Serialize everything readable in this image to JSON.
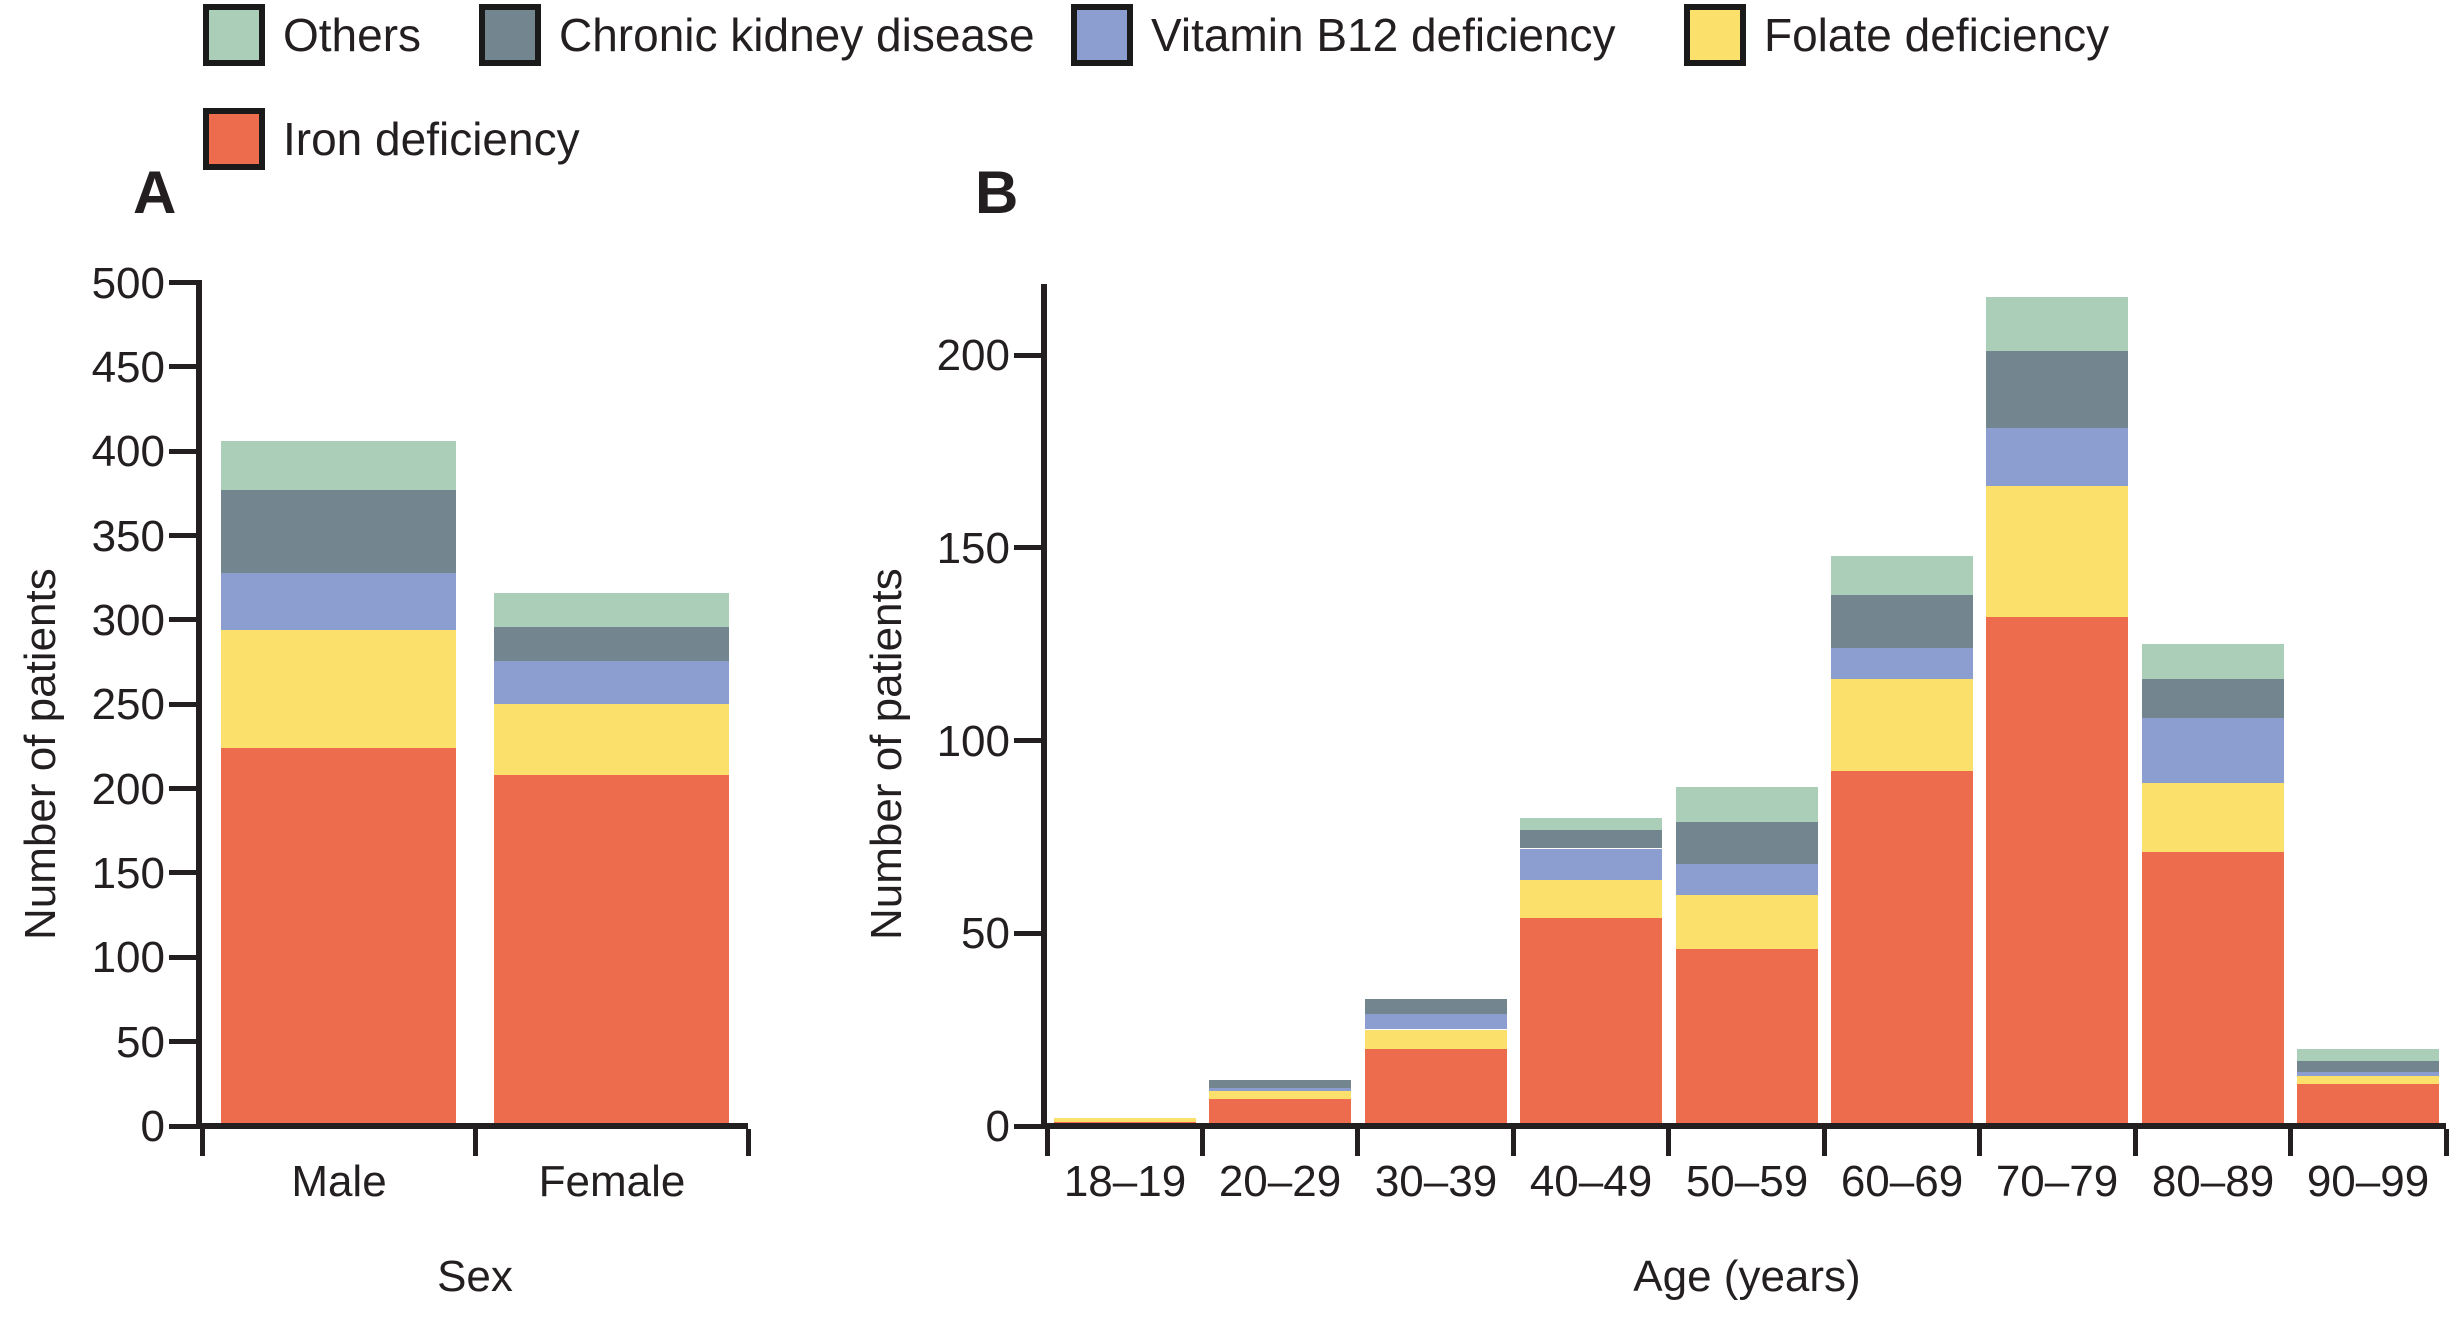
{
  "figure": {
    "panels": [
      {
        "label": "A"
      },
      {
        "label": "B"
      }
    ],
    "legend": {
      "items": [
        {
          "key": "others",
          "label": "Others",
          "color": "#ABCEB9"
        },
        {
          "key": "ckd",
          "label": "Chronic kidney disease",
          "color": "#73858F"
        },
        {
          "key": "b12",
          "label": "Vitamin B12 deficiency",
          "color": "#8C9ECF"
        },
        {
          "key": "folate",
          "label": "Folate deficiency",
          "color": "#FBE16B"
        },
        {
          "key": "iron",
          "label": "Iron deficiency",
          "color": "#ED6C4D"
        }
      ]
    }
  },
  "chart_data": [
    {
      "type": "bar",
      "stacked": true,
      "panel": "A",
      "categories": [
        "Male",
        "Female"
      ],
      "xlabel": "Sex",
      "ylabel": "Number of patients",
      "ylim": [
        0,
        500
      ],
      "yticks": [
        0,
        50,
        100,
        150,
        200,
        250,
        300,
        350,
        400,
        450,
        500
      ],
      "grid": false,
      "legend_position": "top",
      "series": [
        {
          "key": "iron",
          "name": "Iron deficiency",
          "values": [
            224,
            208
          ]
        },
        {
          "key": "folate",
          "name": "Folate deficiency",
          "values": [
            70,
            42
          ]
        },
        {
          "key": "b12",
          "name": "Vitamin B12 deficiency",
          "values": [
            34,
            26
          ]
        },
        {
          "key": "ckd",
          "name": "Chronic kidney disease",
          "values": [
            49,
            20
          ]
        },
        {
          "key": "others",
          "name": "Others",
          "values": [
            29,
            20
          ]
        }
      ],
      "totals": [
        406,
        316
      ]
    },
    {
      "type": "bar",
      "stacked": true,
      "panel": "B",
      "categories": [
        "18–19",
        "20–29",
        "30–39",
        "40–49",
        "50–59",
        "60–69",
        "70–79",
        "80–89",
        "90–99"
      ],
      "xlabel": "Age (years)",
      "ylabel": "Number of patients",
      "ylim": [
        0,
        218
      ],
      "yticks": [
        0,
        50,
        100,
        150,
        200
      ],
      "grid": false,
      "legend_position": "top",
      "series": [
        {
          "key": "iron",
          "name": "Iron deficiency",
          "values": [
            1,
            7,
            20,
            54,
            46,
            92,
            132,
            71,
            11
          ]
        },
        {
          "key": "folate",
          "name": "Folate deficiency",
          "values": [
            1,
            2,
            5,
            10,
            14,
            24,
            34,
            18,
            2
          ]
        },
        {
          "key": "b12",
          "name": "Vitamin B12 deficiency",
          "values": [
            0,
            1,
            4,
            8,
            8,
            8,
            15,
            17,
            1
          ]
        },
        {
          "key": "ckd",
          "name": "Chronic kidney disease",
          "values": [
            0,
            2,
            4,
            5,
            11,
            14,
            20,
            10,
            3
          ]
        },
        {
          "key": "others",
          "name": "Others",
          "values": [
            0,
            0,
            0,
            3,
            9,
            10,
            14,
            9,
            3
          ]
        }
      ],
      "totals": [
        2,
        12,
        33,
        80,
        88,
        148,
        215,
        125,
        20
      ]
    }
  ]
}
